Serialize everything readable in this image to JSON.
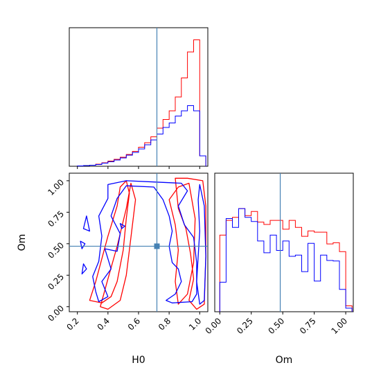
{
  "chart_data": {
    "type": "corner",
    "parameters": [
      "H0",
      "Om"
    ],
    "truth": {
      "H0": 0.72,
      "Om": 0.48
    },
    "truth_color": "#4682b4",
    "series": [
      {
        "color": "#ff0000"
      },
      {
        "color": "#0000ff"
      }
    ],
    "hist_h0": {
      "edges": [
        0.2,
        0.24,
        0.28,
        0.32,
        0.36,
        0.4,
        0.44,
        0.48,
        0.52,
        0.56,
        0.6,
        0.64,
        0.68,
        0.72,
        0.76,
        0.8,
        0.84,
        0.88,
        0.92,
        0.96,
        1.0,
        1.04
      ],
      "red": [
        0.1,
        0.2,
        0.3,
        0.6,
        1.0,
        1.5,
        2.0,
        2.6,
        3.4,
        4.3,
        5.5,
        6.8,
        8.5,
        11.0,
        13.5,
        16.0,
        20.0,
        25.5,
        33.0,
        36.5,
        3.0
      ],
      "blue": [
        0.1,
        0.2,
        0.3,
        0.5,
        0.9,
        1.3,
        1.8,
        2.4,
        3.2,
        4.0,
        5.0,
        6.2,
        7.6,
        9.3,
        11.2,
        12.5,
        14.5,
        16.0,
        17.5,
        16.0,
        3.0
      ]
    },
    "hist_om": {
      "edges": [
        0.0,
        0.05,
        0.1,
        0.15,
        0.2,
        0.25,
        0.3,
        0.35,
        0.4,
        0.45,
        0.5,
        0.55,
        0.6,
        0.65,
        0.7,
        0.75,
        0.8,
        0.85,
        0.9,
        0.95,
        1.0,
        1.05
      ],
      "red": [
        13.0,
        15.5,
        16.0,
        17.5,
        16.3,
        17.0,
        15.2,
        14.8,
        15.5,
        15.5,
        14.0,
        15.5,
        14.3,
        12.8,
        13.7,
        13.5,
        13.5,
        11.5,
        11.7,
        10.2,
        1.0
      ],
      "blue": [
        5.0,
        15.8,
        14.3,
        17.5,
        16.0,
        15.3,
        12.0,
        10.0,
        13.0,
        10.4,
        12.0,
        9.4,
        9.6,
        6.8,
        11.6,
        5.2,
        9.6,
        8.7,
        8.6,
        3.8,
        0.6
      ]
    },
    "contours_2d": {
      "red": [
        [
          [
            0.28,
            0.05
          ],
          [
            0.32,
            0.2
          ],
          [
            0.36,
            0.38
          ],
          [
            0.4,
            0.56
          ],
          [
            0.46,
            0.8
          ],
          [
            0.48,
            0.95
          ],
          [
            0.52,
            1.0
          ],
          [
            0.54,
            0.9
          ],
          [
            0.52,
            0.7
          ],
          [
            0.5,
            0.45
          ],
          [
            0.46,
            0.2
          ],
          [
            0.42,
            0.08
          ],
          [
            0.36,
            0.03
          ],
          [
            0.28,
            0.05
          ]
        ],
        [
          [
            0.35,
            0.0
          ],
          [
            0.4,
            0.22
          ],
          [
            0.46,
            0.48
          ],
          [
            0.52,
            0.78
          ],
          [
            0.55,
            0.98
          ],
          [
            0.58,
            0.85
          ],
          [
            0.55,
            0.55
          ],
          [
            0.52,
            0.25
          ],
          [
            0.48,
            0.05
          ],
          [
            0.4,
            -0.02
          ],
          [
            0.35,
            0.0
          ]
        ],
        [
          [
            0.84,
            1.02
          ],
          [
            0.92,
            1.02
          ],
          [
            1.02,
            1.0
          ],
          [
            1.04,
            0.8
          ],
          [
            1.04,
            0.4
          ],
          [
            1.03,
            0.02
          ],
          [
            0.98,
            -0.02
          ],
          [
            0.93,
            0.05
          ],
          [
            0.96,
            0.22
          ],
          [
            0.94,
            0.42
          ],
          [
            0.91,
            0.62
          ],
          [
            0.86,
            0.78
          ],
          [
            0.84,
            1.02
          ]
        ],
        [
          [
            0.8,
            0.85
          ],
          [
            0.86,
            0.95
          ],
          [
            0.93,
            0.98
          ],
          [
            0.97,
            0.7
          ],
          [
            0.96,
            0.35
          ],
          [
            0.92,
            0.1
          ],
          [
            0.86,
            0.02
          ],
          [
            0.84,
            0.2
          ],
          [
            0.86,
            0.45
          ],
          [
            0.84,
            0.65
          ],
          [
            0.8,
            0.85
          ]
        ]
      ],
      "blue": [
        [
          [
            0.4,
            0.97
          ],
          [
            0.52,
            1.0
          ],
          [
            0.7,
            0.99
          ],
          [
            0.88,
            0.98
          ],
          [
            0.92,
            0.92
          ],
          [
            0.86,
            0.8
          ],
          [
            0.9,
            0.65
          ],
          [
            0.96,
            0.55
          ],
          [
            0.98,
            0.35
          ],
          [
            0.98,
            0.1
          ],
          [
            0.95,
            0.04
          ],
          [
            0.82,
            0.03
          ],
          [
            0.78,
            0.05
          ],
          [
            0.84,
            0.1
          ],
          [
            0.88,
            0.2
          ],
          [
            0.86,
            0.3
          ],
          [
            0.82,
            0.35
          ],
          [
            0.8,
            0.48
          ],
          [
            0.82,
            0.6
          ],
          [
            0.8,
            0.72
          ],
          [
            0.76,
            0.85
          ],
          [
            0.7,
            0.95
          ],
          [
            0.52,
            0.96
          ],
          [
            0.46,
            0.86
          ],
          [
            0.42,
            0.72
          ],
          [
            0.48,
            0.58
          ],
          [
            0.46,
            0.44
          ],
          [
            0.38,
            0.46
          ],
          [
            0.42,
            0.3
          ],
          [
            0.36,
            0.2
          ],
          [
            0.4,
            0.08
          ],
          [
            0.34,
            0.04
          ],
          [
            0.32,
            0.12
          ],
          [
            0.3,
            0.24
          ],
          [
            0.34,
            0.36
          ],
          [
            0.36,
            0.56
          ],
          [
            0.34,
            0.72
          ],
          [
            0.4,
            0.86
          ],
          [
            0.4,
            0.97
          ]
        ],
        [
          [
            1.0,
            0.97
          ],
          [
            1.03,
            0.8
          ],
          [
            1.04,
            0.4
          ],
          [
            1.03,
            0.05
          ],
          [
            1.0,
            0.02
          ],
          [
            0.98,
            0.2
          ],
          [
            1.0,
            0.6
          ],
          [
            0.99,
            0.85
          ],
          [
            1.0,
            0.97
          ]
        ],
        [
          [
            0.26,
            0.72
          ],
          [
            0.24,
            0.62
          ],
          [
            0.28,
            0.6
          ],
          [
            0.26,
            0.72
          ]
        ],
        [
          [
            0.22,
            0.52
          ],
          [
            0.25,
            0.5
          ],
          [
            0.23,
            0.46
          ],
          [
            0.22,
            0.52
          ]
        ],
        [
          [
            0.24,
            0.34
          ],
          [
            0.26,
            0.3
          ],
          [
            0.23,
            0.26
          ],
          [
            0.24,
            0.34
          ]
        ],
        [
          [
            0.48,
            0.66
          ],
          [
            0.51,
            0.64
          ],
          [
            0.49,
            0.62
          ],
          [
            0.48,
            0.66
          ]
        ]
      ]
    },
    "x_ticks_h0": [
      "0.2",
      "0.4",
      "0.6",
      "0.8",
      "1.0"
    ],
    "x_ticks_om": [
      "0.00",
      "0.25",
      "0.50",
      "0.75",
      "1.00"
    ],
    "y_ticks_om": [
      "0.00",
      "0.25",
      "0.50",
      "0.75",
      "1.00"
    ],
    "x_label_h0": "H0",
    "x_label_om": "Om",
    "y_label_om": "Om"
  }
}
